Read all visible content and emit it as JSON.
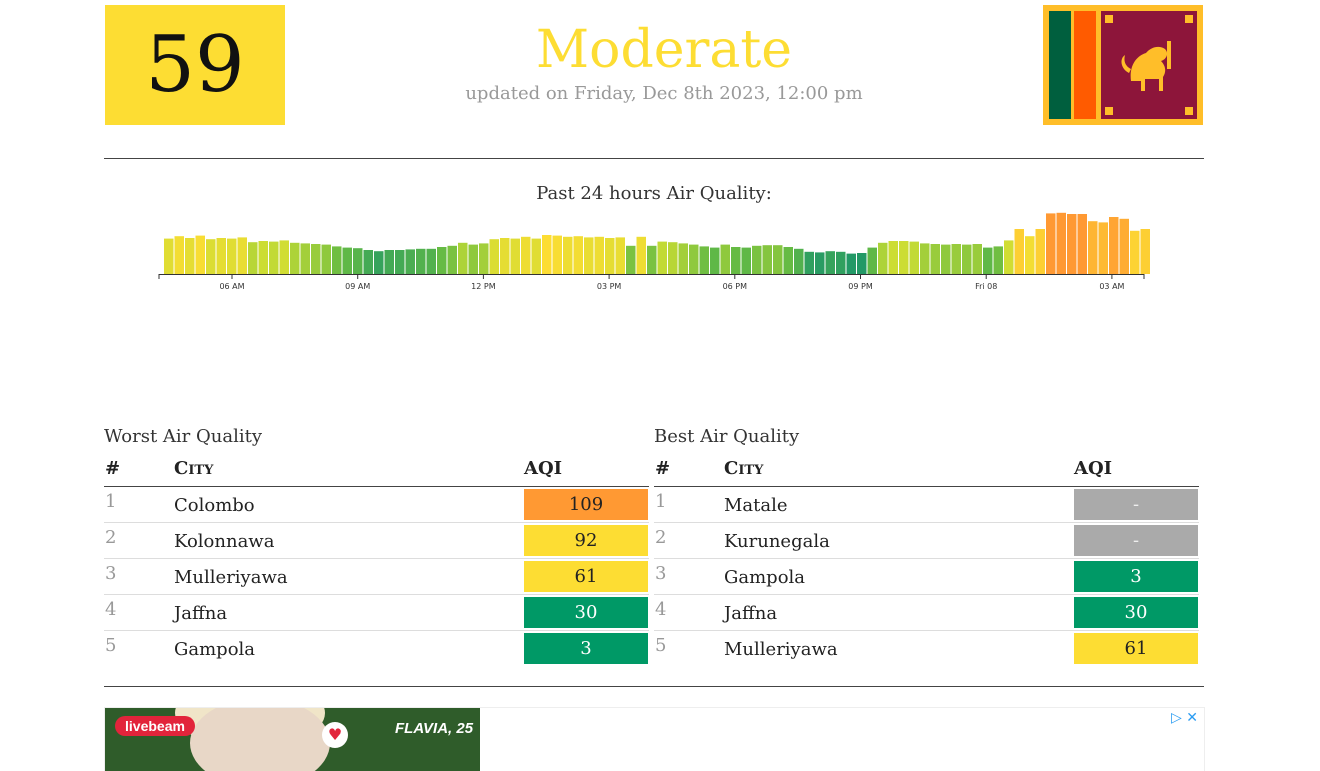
{
  "header": {
    "aqi_value": "59",
    "status": "Moderate",
    "updated": "updated on Friday, Dec 8th 2023, 12:00 pm",
    "status_color": "#fddd33"
  },
  "chart_data": {
    "type": "bar",
    "title": "Past 24 hours Air Quality:",
    "xlabel": "",
    "ylabel": "",
    "x_ticks": [
      "06 AM",
      "09 AM",
      "12 PM",
      "03 PM",
      "06 PM",
      "09 PM",
      "Fri 08",
      "03 AM"
    ],
    "values": [
      59,
      63,
      60,
      64,
      58,
      60,
      59,
      61,
      53,
      55,
      54,
      56,
      52,
      51,
      50,
      49,
      46,
      44,
      43,
      40,
      38,
      40,
      40,
      41,
      42,
      42,
      45,
      47,
      52,
      49,
      51,
      58,
      60,
      59,
      62,
      59,
      65,
      64,
      62,
      63,
      61,
      62,
      60,
      61,
      47,
      62,
      47,
      54,
      53,
      51,
      49,
      46,
      44,
      49,
      45,
      44,
      47,
      48,
      48,
      45,
      42,
      37,
      36,
      38,
      37,
      34,
      35,
      44,
      52,
      55,
      55,
      54,
      51,
      50,
      49,
      50,
      49,
      50,
      44,
      46,
      56,
      75,
      63,
      75,
      101,
      102,
      100,
      100,
      88,
      86,
      95,
      92,
      72,
      75,
      61
    ],
    "colors_legend": {
      "good": "#009966",
      "moderate": "#fddd33",
      "usg": "#ff9933",
      "no_data": "#aaaaaa"
    }
  },
  "worst": {
    "title": "Worst Air Quality",
    "col_rank": "#",
    "col_city": "City",
    "col_aqi": "AQI",
    "rows": [
      {
        "rank": "1",
        "city": "Colombo",
        "aqi": "109",
        "color": "#ff9933",
        "text_color": "#222222"
      },
      {
        "rank": "2",
        "city": "Kolonnawa",
        "aqi": "92",
        "color": "#fddd33",
        "text_color": "#222222"
      },
      {
        "rank": "3",
        "city": "Mulleriyawa",
        "aqi": "61",
        "color": "#fddd33",
        "text_color": "#222222"
      },
      {
        "rank": "4",
        "city": "Jaffna",
        "aqi": "30",
        "color": "#009966",
        "text_color": "#ffffff"
      },
      {
        "rank": "5",
        "city": "Gampola",
        "aqi": "3",
        "color": "#009966",
        "text_color": "#ffffff"
      }
    ]
  },
  "best": {
    "title": "Best Air Quality",
    "col_rank": "#",
    "col_city": "City",
    "col_aqi": "AQI",
    "rows": [
      {
        "rank": "1",
        "city": "Matale",
        "aqi": "-",
        "color": "#aaaaaa",
        "text_color": "#eeeeee"
      },
      {
        "rank": "2",
        "city": "Kurunegala",
        "aqi": "-",
        "color": "#aaaaaa",
        "text_color": "#eeeeee"
      },
      {
        "rank": "3",
        "city": "Gampola",
        "aqi": "3",
        "color": "#009966",
        "text_color": "#ffffff"
      },
      {
        "rank": "4",
        "city": "Jaffna",
        "aqi": "30",
        "color": "#009966",
        "text_color": "#ffffff"
      },
      {
        "rank": "5",
        "city": "Mulleriyawa",
        "aqi": "61",
        "color": "#fddd33",
        "text_color": "#222222"
      }
    ]
  },
  "ad": {
    "brand": "livebeam",
    "profile": "FLAVIA, 25",
    "adchoices_icon": "adchoices-icon",
    "close_icon": "close-icon"
  }
}
